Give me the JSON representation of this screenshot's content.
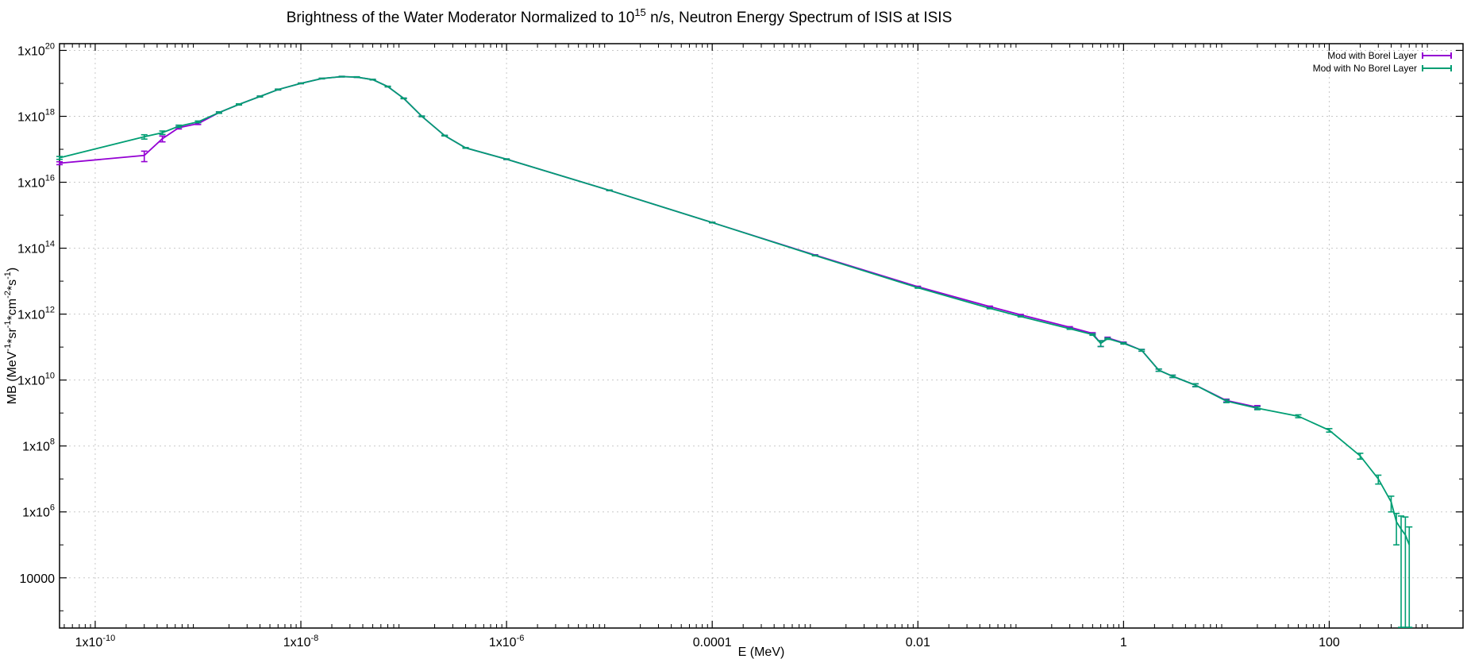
{
  "chart_data": {
    "type": "line",
    "title": {
      "main": "Brightness of the Water Moderator Normalized to 10",
      "sup": "15",
      "rest": " n/s, Neutron Energy Spectrum of ISIS at ISIS"
    },
    "xlabel": "E (MeV)",
    "ylabel": {
      "parts": [
        {
          "t": "MB (MeV"
        },
        {
          "t": "-1",
          "sup": true
        },
        {
          "t": "*sr"
        },
        {
          "t": "-1",
          "sup": true
        },
        {
          "t": "*cm"
        },
        {
          "t": "-2",
          "sup": true
        },
        {
          "t": "*s"
        },
        {
          "t": "-1",
          "sup": true
        },
        {
          "t": ")"
        }
      ]
    },
    "x_scale": "log",
    "y_scale": "log",
    "xlim": [
      4.5e-11,
      2000
    ],
    "ylim": [
      300,
      1.6e+20
    ],
    "grid": true,
    "legend_position": "top-right",
    "x_ticks": [
      {
        "value": 1e-10,
        "base": "1x10",
        "exp": "-10"
      },
      {
        "value": 1e-08,
        "base": "1x10",
        "exp": "-8"
      },
      {
        "value": 1e-06,
        "base": "1x10",
        "exp": "-6"
      },
      {
        "value": 0.0001,
        "base": "0.0001",
        "exp": ""
      },
      {
        "value": 0.01,
        "base": "0.01",
        "exp": ""
      },
      {
        "value": 1,
        "base": "1",
        "exp": ""
      },
      {
        "value": 100,
        "base": "100",
        "exp": ""
      }
    ],
    "y_ticks": [
      {
        "value": 1e+20,
        "base": "1x10",
        "exp": "20"
      },
      {
        "value": 1e+18,
        "base": "1x10",
        "exp": "18"
      },
      {
        "value": 1e+16,
        "base": "1x10",
        "exp": "16"
      },
      {
        "value": 100000000000000.0,
        "base": "1x10",
        "exp": "14"
      },
      {
        "value": 1000000000000.0,
        "base": "1x10",
        "exp": "12"
      },
      {
        "value": 10000000000.0,
        "base": "1x10",
        "exp": "10"
      },
      {
        "value": 100000000.0,
        "base": "1x10",
        "exp": "8"
      },
      {
        "value": 1000000.0,
        "base": "1x10",
        "exp": "6"
      },
      {
        "value": 10000,
        "base": "10000",
        "exp": ""
      }
    ],
    "series": [
      {
        "name": "Mod with Borel Layer",
        "color": "#9400d3",
        "points": [
          [
            4.5e-11,
            3.8e+16,
            0.1
          ],
          [
            3e-10,
            6.5e+16,
            0.35
          ],
          [
            4.5e-10,
            2.1e+17,
            0.2
          ],
          [
            6.5e-10,
            4.5e+17,
            0.08
          ],
          [
            1e-09,
            6e+17,
            0.06
          ],
          [
            1.6e-09,
            1.3e+18,
            0.05
          ],
          [
            2.5e-09,
            2.3e+18,
            0.04
          ],
          [
            4e-09,
            4e+18,
            0.03
          ],
          [
            6e-09,
            6.5e+18,
            0.03
          ],
          [
            1e-08,
            1e+19,
            0.02
          ],
          [
            1.6e-08,
            1.4e+19,
            0.02
          ],
          [
            2.5e-08,
            1.6e+19,
            0.02
          ],
          [
            3.5e-08,
            1.55e+19,
            0.02
          ],
          [
            5e-08,
            1.3e+19,
            0.02
          ],
          [
            7e-08,
            8e+18,
            0.02
          ],
          [
            1e-07,
            3.5e+18,
            0.02
          ],
          [
            1.5e-07,
            1e+18,
            0.02
          ],
          [
            2.5e-07,
            2.6e+17,
            0.02
          ],
          [
            4e-07,
            1.1e+17,
            0.02
          ],
          [
            1e-06,
            5e+16,
            0.02
          ],
          [
            1e-05,
            5700000000000000.0,
            0.02
          ],
          [
            0.0001,
            600000000000000.0,
            0.02
          ],
          [
            0.001,
            62000000000000.0,
            0.02
          ],
          [
            0.01,
            6800000000000.0,
            0.03
          ],
          [
            0.05,
            1700000000000.0,
            0.03
          ],
          [
            0.1,
            950000000000.0,
            0.03
          ],
          [
            0.3,
            400000000000.0,
            0.04
          ],
          [
            0.5,
            260000000000.0,
            0.05
          ],
          [
            0.6,
            130000000000.0,
            0.2
          ],
          [
            0.7,
            190000000000.0,
            0.05
          ],
          [
            1.0,
            135000000000.0,
            0.05
          ],
          [
            1.5,
            80000000000.0,
            0.06
          ],
          [
            2.2,
            20000000000.0,
            0.08
          ],
          [
            3,
            13000000000.0,
            0.08
          ],
          [
            5,
            7000000000.0,
            0.1
          ],
          [
            10,
            2400000000.0,
            0.1
          ],
          [
            20,
            1500000000.0,
            0.12
          ]
        ]
      },
      {
        "name": "Mod with No Borel Layer",
        "color": "#009e73",
        "points": [
          [
            4.5e-11,
            5.5e+16,
            0.1
          ],
          [
            3e-10,
            2.4e+17,
            0.15
          ],
          [
            4.5e-10,
            3.2e+17,
            0.12
          ],
          [
            6.5e-10,
            5e+17,
            0.08
          ],
          [
            1e-09,
            6.8e+17,
            0.06
          ],
          [
            1.6e-09,
            1.3e+18,
            0.05
          ],
          [
            2.5e-09,
            2.3e+18,
            0.04
          ],
          [
            4e-09,
            4e+18,
            0.03
          ],
          [
            6e-09,
            6.5e+18,
            0.03
          ],
          [
            1e-08,
            1e+19,
            0.02
          ],
          [
            1.6e-08,
            1.4e+19,
            0.02
          ],
          [
            2.5e-08,
            1.6e+19,
            0.02
          ],
          [
            3.5e-08,
            1.55e+19,
            0.02
          ],
          [
            5e-08,
            1.3e+19,
            0.02
          ],
          [
            7e-08,
            8e+18,
            0.02
          ],
          [
            1e-07,
            3.5e+18,
            0.02
          ],
          [
            1.5e-07,
            1e+18,
            0.02
          ],
          [
            2.5e-07,
            2.6e+17,
            0.02
          ],
          [
            4e-07,
            1.1e+17,
            0.02
          ],
          [
            1e-06,
            5e+16,
            0.02
          ],
          [
            1e-05,
            5700000000000000.0,
            0.02
          ],
          [
            0.0001,
            600000000000000.0,
            0.02
          ],
          [
            0.001,
            60000000000000.0,
            0.02
          ],
          [
            0.01,
            6300000000000.0,
            0.03
          ],
          [
            0.05,
            1500000000000.0,
            0.03
          ],
          [
            0.1,
            850000000000.0,
            0.03
          ],
          [
            0.3,
            360000000000.0,
            0.04
          ],
          [
            0.5,
            240000000000.0,
            0.05
          ],
          [
            0.6,
            130000000000.0,
            0.2
          ],
          [
            0.7,
            180000000000.0,
            0.05
          ],
          [
            1.0,
            130000000000.0,
            0.05
          ],
          [
            1.5,
            80000000000.0,
            0.06
          ],
          [
            2.2,
            20000000000.0,
            0.08
          ],
          [
            3,
            13000000000.0,
            0.08
          ],
          [
            5,
            7000000000.0,
            0.1
          ],
          [
            10,
            2300000000.0,
            0.1
          ],
          [
            20,
            1400000000.0,
            0.1
          ],
          [
            50,
            800000000.0,
            0.1
          ],
          [
            100,
            300000000.0,
            0.12
          ],
          [
            200,
            50000000.0,
            0.2
          ],
          [
            300,
            10000000.0,
            0.3
          ],
          [
            400,
            2000000.0,
            0.5
          ],
          [
            450,
            500000.0,
            0.8
          ],
          [
            500,
            300000.0,
            1.5
          ],
          [
            550,
            200000.0,
            2.5
          ],
          [
            600,
            100000.0,
            2.5
          ]
        ]
      }
    ]
  }
}
